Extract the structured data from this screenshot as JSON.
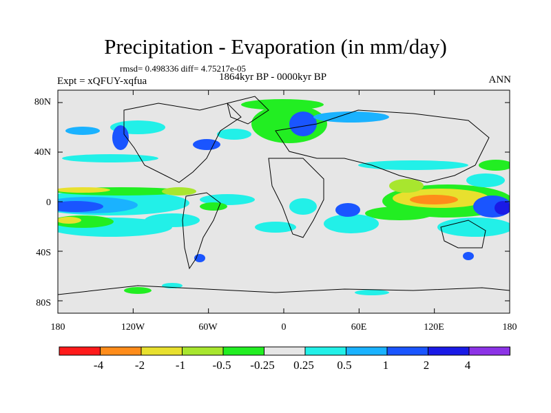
{
  "header": {
    "title": "Precipitation - Evaporation (in mm/day)",
    "stats": "rmsd= 0.498336 diff= 4.75217e-05",
    "period": "1864kyr BP - 0000kyr BP",
    "experiment": "Expt = xQFUY-xqfua",
    "season": "ANN"
  },
  "axes": {
    "lat_labels": [
      "80N",
      "40N",
      "0",
      "40S",
      "80S"
    ],
    "lon_labels": [
      "180",
      "120W",
      "60W",
      "0",
      "60E",
      "120E",
      "180"
    ]
  },
  "colorbar": {
    "labels": [
      "-4",
      "-2",
      "-1",
      "-0.5",
      "-0.25",
      "0.25",
      "0.5",
      "1",
      "2",
      "4"
    ],
    "colors": [
      "#ff1a1a",
      "#ff8c1a",
      "#e8e02e",
      "#a8e62e",
      "#22ee22",
      "#e6e6e6",
      "#22f0e8",
      "#1ab2ff",
      "#1a55ff",
      "#1a1ae6",
      "#8c33e6"
    ]
  }
}
